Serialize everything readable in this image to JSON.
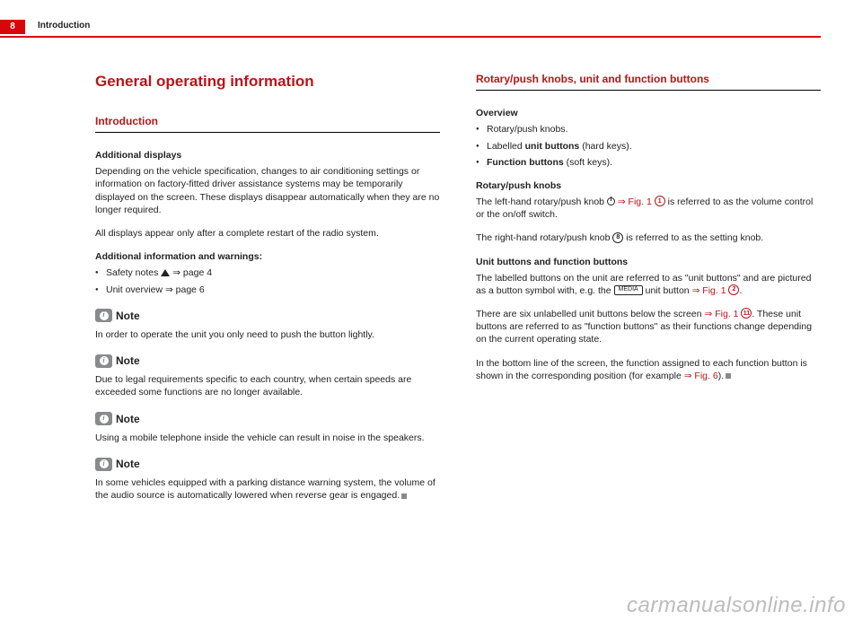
{
  "page": {
    "number": "8",
    "chapter": "Introduction"
  },
  "colors": {
    "accent": "#d8060a",
    "heading": "#b81518",
    "grey": "#898a8b",
    "watermark": "#bdbcbc"
  },
  "left": {
    "title": "General operating information",
    "section": "Introduction",
    "sub1": "Additional displays",
    "para1": "Depending on the vehicle specification, changes to air conditioning settings or information on factory-fitted driver assistance systems may be temporarily displayed on the screen. These displays disappear automatically when they are no longer required.",
    "para2": "All displays appear only after a complete restart of the radio system.",
    "sub2": "Additional information and warnings:",
    "bullet1a": "Safety notes ",
    "bullet1b": " ⇒ page 4",
    "bullet2": "Unit overview ⇒ page 6",
    "noteLabel": "Note",
    "note1": "In order to operate the unit you only need to push the button lightly.",
    "note2": "Due to legal requirements specific to each country, when certain speeds are exceeded some functions are no longer available.",
    "note3": "Using a mobile telephone inside the vehicle can result in noise in the speakers.",
    "note4": "In some vehicles equipped with a parking distance warning system, the volume of the audio source is automatically lowered when reverse gear is engaged."
  },
  "right": {
    "section": "Rotary/push knobs, unit and function buttons",
    "sub1": "Overview",
    "ov1": "Rotary/push knobs.",
    "ov2a": "Labelled ",
    "ov2b": "unit buttons",
    "ov2c": " (hard keys).",
    "ov3a": "Function buttons",
    "ov3b": " (soft keys).",
    "sub2": "Rotary/push knobs",
    "rp1a": "The left-hand rotary/push knob ",
    "rp1ref": "⇒ Fig. 1",
    "rp1num": "1",
    "rp1b": " is referred to as the volume control or the on/off switch.",
    "rp2a": "The right-hand rotary/push knob ",
    "rp2num": "8",
    "rp2b": " is referred to as the setting knob.",
    "sub3": "Unit buttons and function buttons",
    "ub1a": "The labelled buttons on the unit are referred to as \"unit buttons\" and are pictured as a button symbol with, e.g. the ",
    "ub1pill": "MEDIA",
    "ub1b": " unit button ",
    "ub1ref": "⇒ Fig. 1",
    "ub1num": "2",
    "ub1c": ".",
    "ub2a": "There are six unlabelled unit buttons below the screen ",
    "ub2ref": "⇒ Fig. 1",
    "ub2num": "11",
    "ub2b": ". These unit buttons are referred to as \"function buttons\" as their functions change depending on the current operating state.",
    "ub3a": "In the bottom line of the screen, the function assigned to each function button is shown in the corresponding position (for example ",
    "ub3ref": "⇒ Fig. 6",
    "ub3b": ")."
  },
  "watermark": "carmanualsonline.info"
}
